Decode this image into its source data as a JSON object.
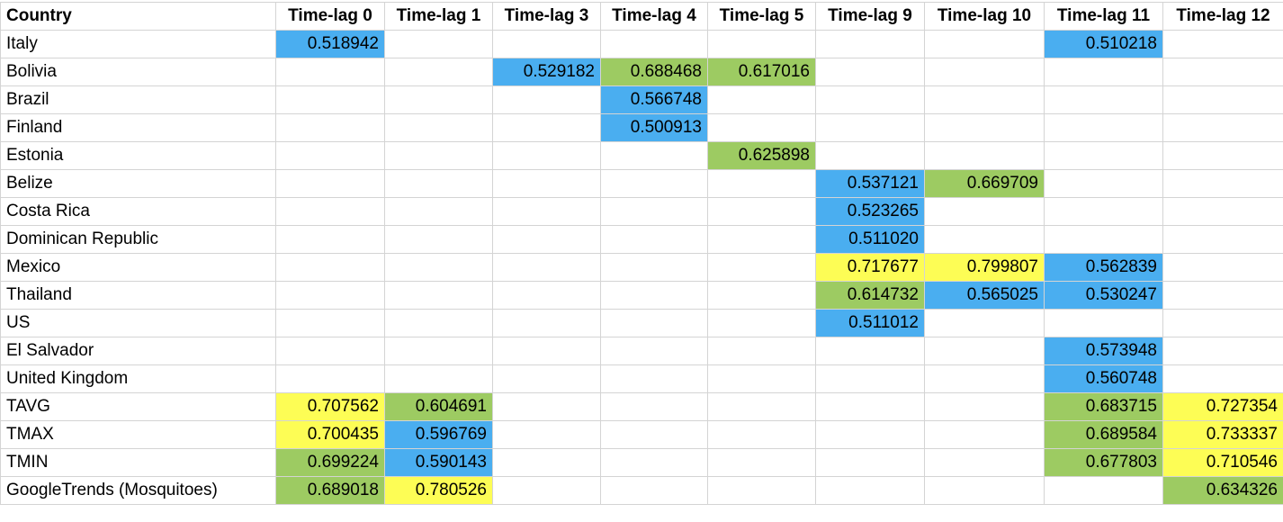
{
  "columns": [
    "Country",
    "Time-lag 0",
    "Time-lag 1",
    "Time-lag 3",
    "Time-lag 4",
    "Time-lag 5",
    "Time-lag 9",
    "Time-lag 10",
    "Time-lag 11",
    "Time-lag 12"
  ],
  "colors": {
    "blue": "#4aaef0",
    "green": "#9dcb62",
    "yellow": "#fdfd55"
  },
  "rows": [
    {
      "name": "Italy",
      "cells": [
        [
          "0.518942",
          "blue"
        ],
        null,
        null,
        null,
        null,
        null,
        null,
        [
          "0.510218",
          "blue"
        ],
        null
      ]
    },
    {
      "name": "Bolivia",
      "cells": [
        null,
        null,
        [
          "0.529182",
          "blue"
        ],
        [
          "0.688468",
          "green"
        ],
        [
          "0.617016",
          "green"
        ],
        null,
        null,
        null,
        null
      ]
    },
    {
      "name": "Brazil",
      "cells": [
        null,
        null,
        null,
        [
          "0.566748",
          "blue"
        ],
        null,
        null,
        null,
        null,
        null
      ]
    },
    {
      "name": "Finland",
      "cells": [
        null,
        null,
        null,
        [
          "0.500913",
          "blue"
        ],
        null,
        null,
        null,
        null,
        null
      ]
    },
    {
      "name": "Estonia",
      "cells": [
        null,
        null,
        null,
        null,
        [
          "0.625898",
          "green"
        ],
        null,
        null,
        null,
        null
      ]
    },
    {
      "name": "Belize",
      "cells": [
        null,
        null,
        null,
        null,
        null,
        [
          "0.537121",
          "blue"
        ],
        [
          "0.669709",
          "green"
        ],
        null,
        null
      ]
    },
    {
      "name": "Costa Rica",
      "cells": [
        null,
        null,
        null,
        null,
        null,
        [
          "0.523265",
          "blue"
        ],
        null,
        null,
        null
      ]
    },
    {
      "name": "Dominican Republic",
      "cells": [
        null,
        null,
        null,
        null,
        null,
        [
          "0.511020",
          "blue"
        ],
        null,
        null,
        null
      ]
    },
    {
      "name": "Mexico",
      "cells": [
        null,
        null,
        null,
        null,
        null,
        [
          "0.717677",
          "yellow"
        ],
        [
          "0.799807",
          "yellow"
        ],
        [
          "0.562839",
          "blue"
        ],
        null
      ]
    },
    {
      "name": "Thailand",
      "cells": [
        null,
        null,
        null,
        null,
        null,
        [
          "0.614732",
          "green"
        ],
        [
          "0.565025",
          "blue"
        ],
        [
          "0.530247",
          "blue"
        ],
        null
      ]
    },
    {
      "name": "US",
      "cells": [
        null,
        null,
        null,
        null,
        null,
        [
          "0.511012",
          "blue"
        ],
        null,
        null,
        null
      ]
    },
    {
      "name": "El Salvador",
      "cells": [
        null,
        null,
        null,
        null,
        null,
        null,
        null,
        [
          "0.573948",
          "blue"
        ],
        null
      ]
    },
    {
      "name": "United Kingdom",
      "cells": [
        null,
        null,
        null,
        null,
        null,
        null,
        null,
        [
          "0.560748",
          "blue"
        ],
        null
      ]
    },
    {
      "name": "TAVG",
      "cells": [
        [
          "0.707562",
          "yellow"
        ],
        [
          "0.604691",
          "green"
        ],
        null,
        null,
        null,
        null,
        null,
        [
          "0.683715",
          "green"
        ],
        [
          "0.727354",
          "yellow"
        ]
      ]
    },
    {
      "name": "TMAX",
      "cells": [
        [
          "0.700435",
          "yellow"
        ],
        [
          "0.596769",
          "blue"
        ],
        null,
        null,
        null,
        null,
        null,
        [
          "0.689584",
          "green"
        ],
        [
          "0.733337",
          "yellow"
        ]
      ]
    },
    {
      "name": "TMIN",
      "cells": [
        [
          "0.699224",
          "green"
        ],
        [
          "0.590143",
          "blue"
        ],
        null,
        null,
        null,
        null,
        null,
        [
          "0.677803",
          "green"
        ],
        [
          "0.710546",
          "yellow"
        ]
      ]
    },
    {
      "name": "GoogleTrends (Mosquitoes)",
      "cells": [
        [
          "0.689018",
          "green"
        ],
        [
          "0.780526",
          "yellow"
        ],
        null,
        null,
        null,
        null,
        null,
        null,
        [
          "0.634326",
          "green"
        ]
      ]
    }
  ]
}
